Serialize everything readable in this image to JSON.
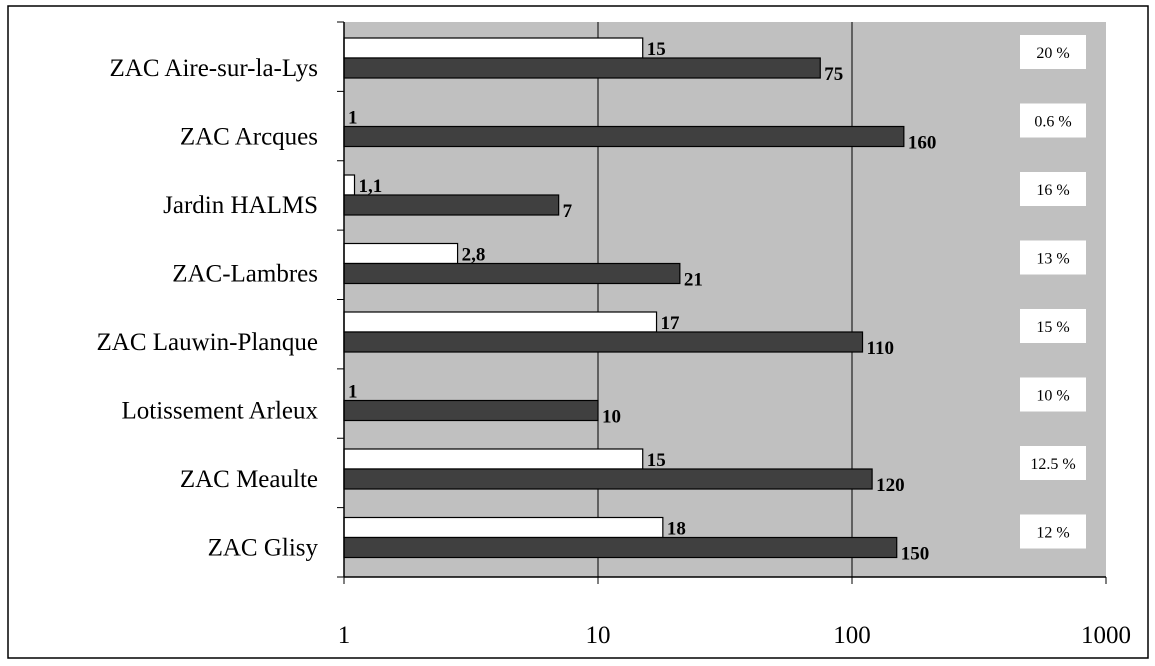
{
  "chart_data": {
    "type": "bar",
    "orientation": "horizontal",
    "x_scale": "log",
    "xlim": [
      1,
      1000
    ],
    "x_ticks": [
      "1",
      "10",
      "100",
      "1000"
    ],
    "grid": true,
    "categories": [
      "ZAC Aire-sur-la-Lys",
      "ZAC Arcques",
      "Jardin HALMS",
      "ZAC-Lambres",
      "ZAC Lauwin-Planque",
      "Lotissement Arleux",
      "ZAC Meaulte",
      "ZAC Glisy"
    ],
    "series": [
      {
        "color": "#ffffff",
        "values": [
          15,
          1,
          1.1,
          2.8,
          17,
          1,
          15,
          18
        ],
        "labels": [
          "15",
          "1",
          "1,1",
          "2,8",
          "17",
          "1",
          "15",
          "18"
        ]
      },
      {
        "color": "#404040",
        "values": [
          75,
          160,
          7,
          21,
          110,
          10,
          120,
          150
        ],
        "labels": [
          "75",
          "160",
          "7",
          "21",
          "110",
          "10",
          "120",
          "150"
        ]
      }
    ],
    "percentages": [
      "20 %",
      "0.6 %",
      "16 %",
      "13 %",
      "15 %",
      "10 %",
      "12.5 %",
      "12 %"
    ]
  }
}
